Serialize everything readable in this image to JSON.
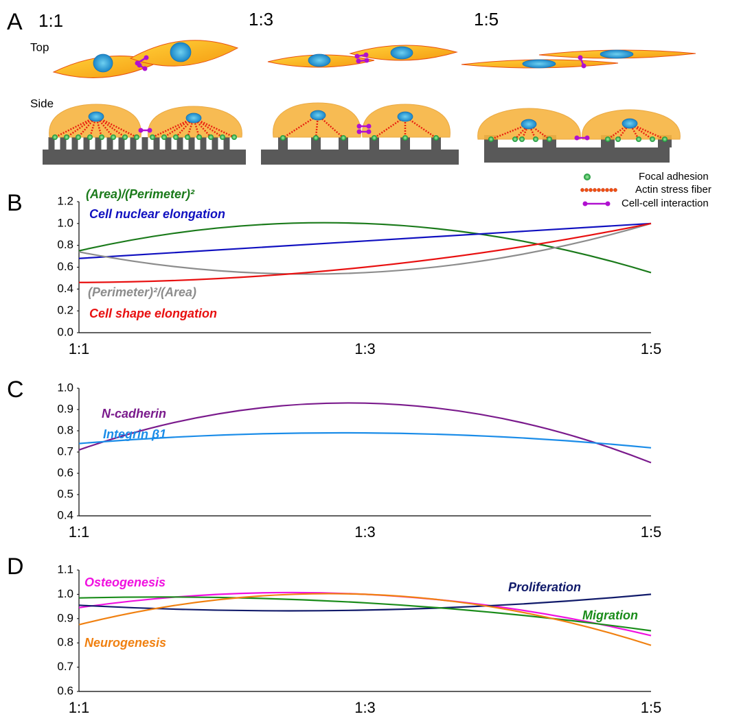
{
  "panel_a": {
    "label": "A",
    "ratios": [
      "1:1",
      "1:3",
      "1:5"
    ],
    "views": [
      "Top",
      "Side"
    ],
    "legend": [
      "Focal adhesion",
      "Actin stress fiber",
      "Cell-cell interaction"
    ]
  },
  "chart_data": [
    {
      "type": "line",
      "panel_label": "B",
      "categories": [
        "1:1",
        "1:3",
        "1:5"
      ],
      "ylim": [
        0,
        1.2
      ],
      "yticks": [
        {
          "value": 0,
          "label": "0.0"
        },
        0.2,
        0.4,
        0.6,
        0.8,
        {
          "value": 1,
          "label": "1.0"
        },
        1.2
      ],
      "series": [
        {
          "name": "(Area)/(Perimeter)²",
          "color": "#1a7a1a",
          "values": [
            0.75,
            1.0,
            0.55
          ]
        },
        {
          "name": "Cell nuclear elongation",
          "color": "#1010c0",
          "values": [
            0.68,
            0.84,
            1.0
          ]
        },
        {
          "name": "(Perimeter)²/(Area)",
          "color": "#8c8c8c",
          "values": [
            0.74,
            0.55,
            1.0
          ]
        },
        {
          "name": "Cell shape elongation",
          "color": "#e81010",
          "values": [
            0.46,
            0.6,
            1.0
          ]
        }
      ]
    },
    {
      "type": "line",
      "panel_label": "C",
      "categories": [
        "1:1",
        "1:3",
        "1:5"
      ],
      "ylim": [
        0.4,
        1.0
      ],
      "yticks": [
        0.4,
        0.5,
        0.6,
        0.7,
        0.8,
        0.9,
        {
          "value": 1,
          "label": "1.0"
        }
      ],
      "series": [
        {
          "name": "N-cadherin",
          "color": "#7a1a8c",
          "values": [
            0.71,
            0.93,
            0.65
          ]
        },
        {
          "name": "Integrin β1",
          "color": "#1a8ce8",
          "values": [
            0.74,
            0.79,
            0.72
          ]
        }
      ]
    },
    {
      "type": "line",
      "panel_label": "D",
      "categories": [
        "1:1",
        "1:3",
        "1:5"
      ],
      "ylim": [
        0.6,
        1.1
      ],
      "yticks": [
        0.6,
        0.7,
        0.8,
        0.9,
        {
          "value": 1,
          "label": "1.0"
        },
        1.1
      ],
      "series": [
        {
          "name": "Osteogenesis",
          "color": "#f010e0",
          "values": [
            0.945,
            1.0,
            0.83
          ]
        },
        {
          "name": "Proliferation",
          "color": "#101a6a",
          "values": [
            0.955,
            0.935,
            1.0
          ]
        },
        {
          "name": "Migration",
          "color": "#1a8c1a",
          "values": [
            0.985,
            0.965,
            0.85
          ]
        },
        {
          "name": "Neurogenesis",
          "color": "#f08010",
          "values": [
            0.875,
            1.0,
            0.79
          ]
        }
      ]
    }
  ]
}
